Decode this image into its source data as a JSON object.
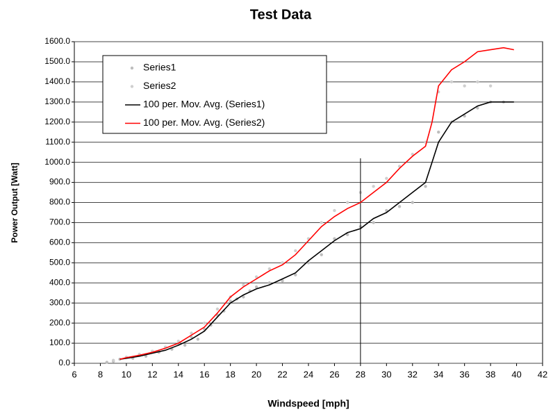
{
  "chart_data": {
    "type": "scatter",
    "title": "Test Data",
    "x_label": "Windspeed [mph]",
    "y_label": "Power Output [Watt]",
    "xlim": [
      6,
      42
    ],
    "xticks": [
      6,
      8,
      10,
      12,
      14,
      16,
      18,
      20,
      22,
      24,
      26,
      28,
      30,
      32,
      34,
      36,
      38,
      40,
      42
    ],
    "ylim": [
      0,
      1600
    ],
    "yticks": [
      {
        "value": 0,
        "label": "0.0"
      },
      {
        "value": 100,
        "label": "100.0"
      },
      {
        "value": 200,
        "label": "200.0"
      },
      {
        "value": 300,
        "label": "300.0"
      },
      {
        "value": 400,
        "label": "400.0"
      },
      {
        "value": 500,
        "label": "500.0"
      },
      {
        "value": 600,
        "label": "600.0"
      },
      {
        "value": 700,
        "label": "700.0"
      },
      {
        "value": 800,
        "label": "800.0"
      },
      {
        "value": 900,
        "label": "900.0"
      },
      {
        "value": 1000,
        "label": "1000.0"
      },
      {
        "value": 1100,
        "label": "1100.0"
      },
      {
        "value": 1200,
        "label": "1200.0"
      },
      {
        "value": 1300,
        "label": "1300.0"
      },
      {
        "value": 1400,
        "label": "1400.0"
      },
      {
        "value": 1500,
        "label": "1500.0"
      },
      {
        "value": 1600,
        "label": "1600.0"
      }
    ],
    "grid": true,
    "legend": "upper left",
    "series": [
      {
        "name": "Series1",
        "mode": "markers",
        "color": "#bdbdbd",
        "x": [
          8.5,
          9,
          9.5,
          10,
          10.5,
          11,
          11.5,
          12,
          12.5,
          13,
          13.5,
          14,
          14.5,
          15,
          15.5,
          16,
          16.5,
          17,
          17.5,
          18,
          18.5,
          19,
          19.5,
          20,
          21,
          22,
          23,
          24,
          25,
          26,
          27,
          28,
          29,
          30,
          31,
          32,
          33,
          34,
          35,
          36,
          37,
          38,
          39
        ],
        "values": [
          5,
          10,
          20,
          30,
          25,
          40,
          35,
          60,
          55,
          80,
          70,
          100,
          90,
          130,
          120,
          170,
          190,
          240,
          260,
          310,
          320,
          330,
          360,
          380,
          400,
          410,
          440,
          500,
          540,
          620,
          640,
          680,
          700,
          760,
          780,
          800,
          880,
          1150,
          1200,
          1230,
          1270,
          1300,
          1300
        ]
      },
      {
        "name": "Series2",
        "mode": "markers",
        "color": "#cfcfcf",
        "x": [
          9,
          10,
          11,
          12,
          13,
          14,
          15,
          16,
          17,
          18,
          19,
          20,
          21,
          22,
          23,
          24,
          25,
          26,
          27,
          28,
          29,
          30,
          31,
          32,
          33,
          34,
          35,
          36,
          37,
          38
        ],
        "values": [
          15,
          30,
          45,
          60,
          80,
          110,
          150,
          200,
          270,
          330,
          390,
          430,
          470,
          500,
          560,
          620,
          700,
          760,
          800,
          850,
          880,
          920,
          980,
          1040,
          1100,
          1350,
          1400,
          1380,
          1400,
          1380
        ]
      },
      {
        "name": "100 per. Mov. Avg. (Series1)",
        "mode": "line",
        "color": "#000000",
        "x": [
          9.5,
          10,
          11,
          12,
          13,
          14,
          15,
          16,
          17,
          18,
          19,
          20,
          21,
          22,
          23,
          24,
          25,
          26,
          27,
          28,
          29,
          30,
          31,
          32,
          33,
          33.5,
          34,
          35,
          36,
          37,
          38,
          39,
          39.8
        ],
        "values": [
          20,
          25,
          35,
          50,
          65,
          90,
          120,
          160,
          230,
          300,
          340,
          370,
          390,
          420,
          450,
          510,
          560,
          610,
          650,
          670,
          720,
          750,
          800,
          850,
          900,
          1000,
          1100,
          1200,
          1240,
          1280,
          1300,
          1300,
          1300
        ]
      },
      {
        "name": "100 per. Mov. Avg. (Series2)",
        "mode": "line",
        "color": "#ff0000",
        "x": [
          9.5,
          10,
          11,
          12,
          13,
          14,
          15,
          16,
          17,
          18,
          19,
          20,
          21,
          22,
          23,
          24,
          25,
          26,
          27,
          28,
          29,
          30,
          31,
          32,
          33,
          33.5,
          34,
          35,
          36,
          37,
          38,
          39,
          39.8
        ],
        "values": [
          20,
          28,
          40,
          55,
          75,
          100,
          140,
          180,
          250,
          330,
          380,
          420,
          460,
          490,
          540,
          610,
          680,
          730,
          770,
          800,
          850,
          900,
          970,
          1030,
          1080,
          1200,
          1380,
          1460,
          1500,
          1550,
          1560,
          1570,
          1560
        ]
      }
    ],
    "vlines": [
      {
        "x": 28,
        "y": [
          0,
          1020
        ]
      }
    ]
  }
}
